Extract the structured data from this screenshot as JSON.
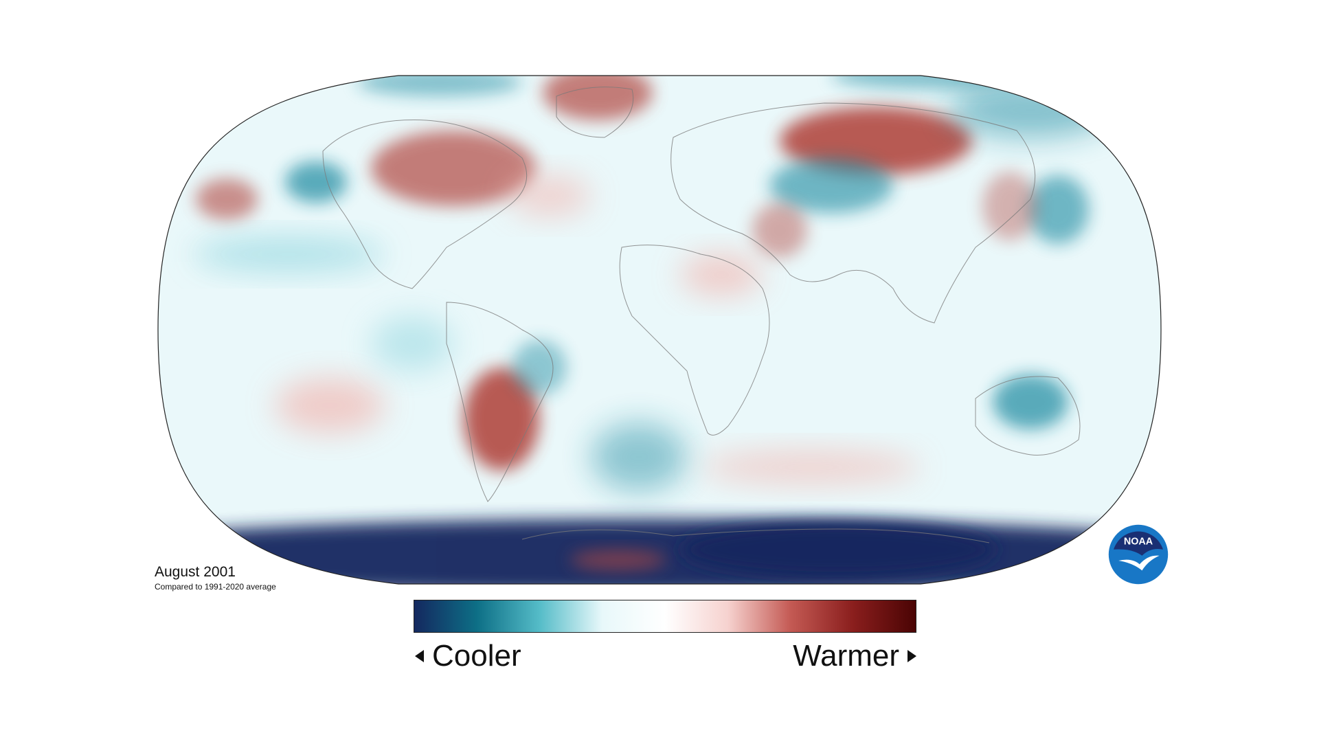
{
  "map": {
    "title": "August 2001",
    "subtitle": "Compared to 1991-2020 average",
    "projection": "robinson",
    "colors": {
      "cool_extreme": "#14285f",
      "cool_mid": "#1a8aa0",
      "cool_light": "#a8dfe6",
      "neutral": "#ffffff",
      "warm_light": "#f2b9b4",
      "warm_mid": "#b24842",
      "warm_extreme": "#4a0404"
    },
    "anomaly_regions": [
      {
        "name": "Arctic Greenland warm",
        "kind": "warm",
        "intensity": 0.6
      },
      {
        "name": "Canada warm",
        "kind": "warm",
        "intensity": 0.6
      },
      {
        "name": "Alaska Gulf cool",
        "kind": "cool",
        "intensity": 0.5
      },
      {
        "name": "North Pacific warm",
        "kind": "warm",
        "intensity": 0.5
      },
      {
        "name": "Central Siberia warm",
        "kind": "warm",
        "intensity": 0.9
      },
      {
        "name": "Kazakhstan cool",
        "kind": "cool",
        "intensity": 0.5
      },
      {
        "name": "Northwest Pacific cool",
        "kind": "cool",
        "intensity": 0.5
      },
      {
        "name": "Middle East warm",
        "kind": "warm",
        "intensity": 0.4
      },
      {
        "name": "South America warm",
        "kind": "warm",
        "intensity": 0.8
      },
      {
        "name": "Brazil cool",
        "kind": "cool",
        "intensity": 0.4
      },
      {
        "name": "South Atlantic cool",
        "kind": "cool",
        "intensity": 0.5
      },
      {
        "name": "Australia cool",
        "kind": "cool",
        "intensity": 0.6
      },
      {
        "name": "Antarctica cool",
        "kind": "cool",
        "intensity": 1.0
      },
      {
        "name": "Antarctic Peninsula warm",
        "kind": "warm",
        "intensity": 0.6
      }
    ]
  },
  "legend": {
    "cooler_label": "Cooler",
    "warmer_label": "Warmer",
    "gradient": [
      "#14285f",
      "#0d6f86",
      "#55bcc8",
      "#e8f8fa",
      "#ffffff",
      "#f6d2cf",
      "#c45a54",
      "#8a1e1d",
      "#4a0404"
    ]
  },
  "logo": {
    "text": "NOAA",
    "bg": "#1877c6",
    "top": "#1a2f73"
  }
}
